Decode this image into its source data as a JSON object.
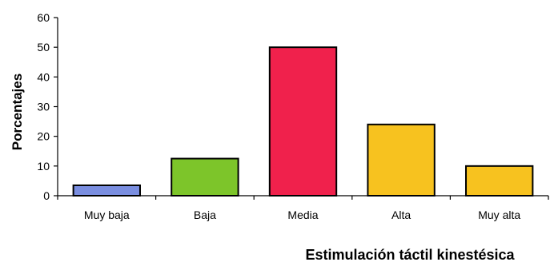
{
  "chart_data": {
    "type": "bar",
    "title": "",
    "xlabel": "Estimulación táctil kinestésica",
    "ylabel": "Porcentajes",
    "categories": [
      "Muy baja",
      "Baja",
      "Media",
      "Alta",
      "Muy alta"
    ],
    "values": [
      3.5,
      12.5,
      50,
      24,
      10
    ],
    "bar_colors": [
      "#7a8ee0",
      "#7dc52a",
      "#f0214c",
      "#f7c21f",
      "#f7c21f"
    ],
    "ylim": [
      0,
      60
    ],
    "yticks": [
      "0",
      "10",
      "20",
      "30",
      "40",
      "50",
      "60"
    ],
    "grid": false,
    "legend": "none"
  }
}
